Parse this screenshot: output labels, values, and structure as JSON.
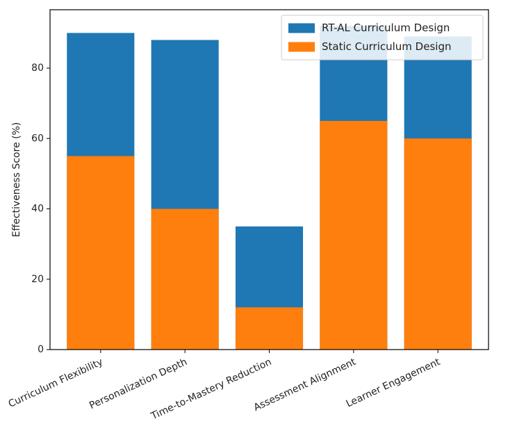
{
  "chart_data": {
    "type": "bar",
    "stacked": false,
    "categories": [
      "Curriculum Flexibility",
      "Personalization Depth",
      "Time-to-Mastery Reduction",
      "Assessment Alignment",
      "Learner Engagement"
    ],
    "series": [
      {
        "name": "RT-AL Curriculum Design",
        "color": "#1f77b4",
        "values": [
          90,
          88,
          35,
          92,
          89
        ]
      },
      {
        "name": "Static Curriculum Design",
        "color": "#ff7f0e",
        "values": [
          55,
          40,
          12,
          65,
          60
        ]
      }
    ],
    "xlabel": "",
    "ylabel": "Effectiveness Score (%)",
    "ylim": [
      0,
      96.6
    ],
    "yticks": [
      0,
      20,
      40,
      60,
      80
    ],
    "grid": false,
    "legend": "top-right",
    "x_tick_rotation_deg": -25
  }
}
